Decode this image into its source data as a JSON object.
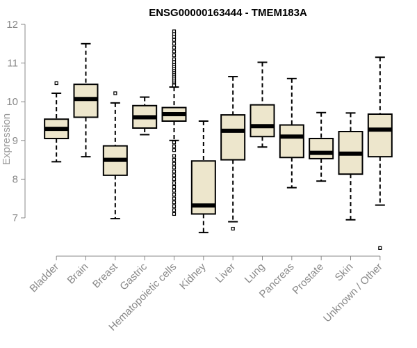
{
  "chart_data": {
    "type": "boxplot",
    "title": "ENSG00000163444 - TMEM183A",
    "ylabel": "Expression",
    "xlabel": "",
    "ylim": [
      6.0,
      12.0
    ],
    "y_ticks": [
      7,
      8,
      9,
      10,
      11,
      12
    ],
    "grid": false,
    "box_fill": "#ede6cc",
    "median_color": "#000000",
    "categories": [
      "Bladder",
      "Brain",
      "Breast",
      "Gastric",
      "Hematopoietic cells",
      "Kidney",
      "Liver",
      "Lung",
      "Pancreas",
      "Prostate",
      "Skin",
      "Unknown / Other"
    ],
    "boxes": [
      {
        "whisker_low": 8.45,
        "q1": 9.05,
        "median": 9.3,
        "q3": 9.55,
        "whisker_high": 10.22,
        "outliers": [
          10.48
        ]
      },
      {
        "whisker_low": 8.58,
        "q1": 9.6,
        "median": 10.07,
        "q3": 10.45,
        "whisker_high": 11.5,
        "outliers": []
      },
      {
        "whisker_low": 6.98,
        "q1": 8.1,
        "median": 8.5,
        "q3": 8.86,
        "whisker_high": 9.97,
        "outliers": [
          10.22
        ]
      },
      {
        "whisker_low": 9.15,
        "q1": 9.32,
        "median": 9.6,
        "q3": 9.9,
        "whisker_high": 10.12,
        "outliers": []
      },
      {
        "whisker_low": 9.0,
        "q1": 9.5,
        "median": 9.68,
        "q3": 9.85,
        "whisker_high": 10.38,
        "outliers": [
          11.82,
          11.75,
          11.68,
          11.6,
          11.5,
          11.4,
          11.3,
          11.2,
          11.1,
          11.02,
          10.95,
          10.9,
          10.85,
          10.8,
          10.75,
          10.7,
          10.65,
          10.6,
          10.55,
          10.5,
          10.45,
          10.42,
          8.95,
          8.85,
          8.75,
          8.6,
          8.5,
          8.4,
          8.3,
          8.2,
          8.1,
          8.0,
          7.9,
          7.8,
          7.7,
          7.6,
          7.5,
          7.4,
          7.3,
          7.2,
          7.1
        ]
      },
      {
        "whisker_low": 6.62,
        "q1": 7.1,
        "median": 7.32,
        "q3": 8.47,
        "whisker_high": 9.5,
        "outliers": []
      },
      {
        "whisker_low": 6.9,
        "q1": 8.5,
        "median": 9.25,
        "q3": 9.66,
        "whisker_high": 10.65,
        "outliers": [
          6.72
        ]
      },
      {
        "whisker_low": 8.83,
        "q1": 9.1,
        "median": 9.37,
        "q3": 9.92,
        "whisker_high": 11.02,
        "outliers": []
      },
      {
        "whisker_low": 7.78,
        "q1": 8.56,
        "median": 9.1,
        "q3": 9.4,
        "whisker_high": 10.6,
        "outliers": []
      },
      {
        "whisker_low": 7.95,
        "q1": 8.53,
        "median": 8.68,
        "q3": 9.05,
        "whisker_high": 9.72,
        "outliers": []
      },
      {
        "whisker_low": 6.95,
        "q1": 8.13,
        "median": 8.66,
        "q3": 9.23,
        "whisker_high": 9.71,
        "outliers": []
      },
      {
        "whisker_low": 7.33,
        "q1": 8.58,
        "median": 9.28,
        "q3": 9.68,
        "whisker_high": 11.15,
        "outliers": [
          6.22
        ]
      }
    ]
  }
}
